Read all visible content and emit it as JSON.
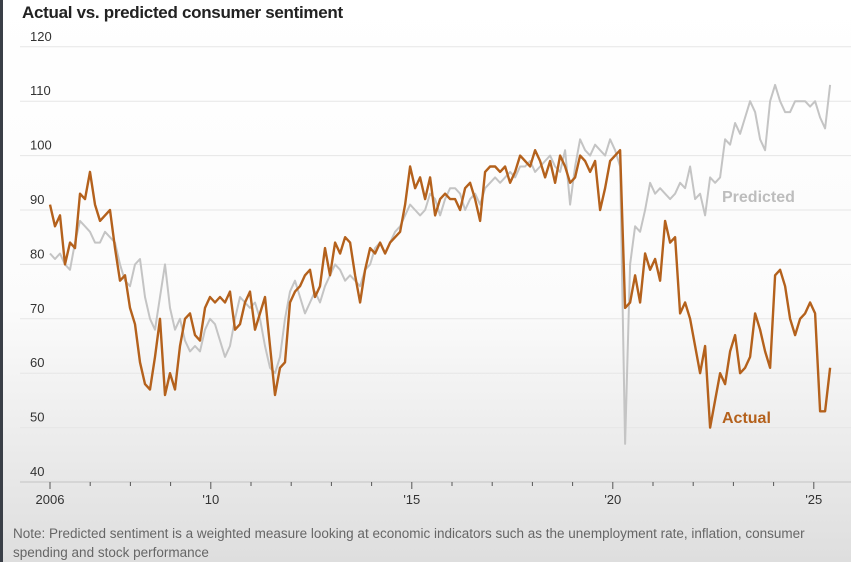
{
  "chart_data": {
    "type": "line",
    "title": "Actual vs. predicted consumer sentiment",
    "xlabel": "",
    "ylabel": "",
    "ylim": [
      40,
      120
    ],
    "xlim": [
      2006,
      2025.6
    ],
    "grid": true,
    "y_ticks": [
      "120",
      "110",
      "100",
      "90",
      "80",
      "70",
      "60",
      "50",
      "40"
    ],
    "y_tick_values": [
      120,
      110,
      100,
      90,
      80,
      70,
      60,
      50,
      40
    ],
    "x_ticks": [
      {
        "value": 2006,
        "label": "2006"
      },
      {
        "value": 2010,
        "label": "'10"
      },
      {
        "value": 2015,
        "label": "'15"
      },
      {
        "value": 2020,
        "label": "'20"
      },
      {
        "value": 2025,
        "label": "'25"
      }
    ],
    "x_start": 2006,
    "x_step": 0.1244,
    "series": [
      {
        "name": "Predicted",
        "color": "#c4c4c4",
        "values": [
          82,
          81,
          82,
          80,
          79,
          84,
          88,
          87,
          86,
          84,
          84,
          86,
          85,
          84,
          80,
          77,
          76,
          80,
          81,
          74,
          70,
          68,
          74,
          80,
          72,
          68,
          70,
          66,
          64,
          65,
          64,
          68,
          70,
          69,
          66,
          63,
          65,
          70,
          74,
          73,
          72,
          73,
          70,
          65,
          61,
          60,
          63,
          70,
          75,
          77,
          74,
          71,
          73,
          75,
          73,
          76,
          78,
          80,
          79,
          77,
          78,
          77,
          76,
          79,
          80,
          83,
          84,
          82,
          84,
          86,
          87,
          89,
          91,
          90,
          89,
          90,
          93,
          92,
          89,
          92,
          94,
          94,
          93,
          90,
          92,
          93,
          91,
          94,
          95,
          96,
          95,
          96,
          97,
          96,
          98,
          98,
          99,
          97,
          98,
          99,
          100,
          98,
          97,
          101,
          91,
          98,
          103,
          101,
          100,
          102,
          101,
          100,
          103,
          101,
          98,
          47,
          80,
          87,
          86,
          90,
          95,
          93,
          94,
          93,
          92,
          93,
          95,
          94,
          98,
          92,
          93,
          89,
          96,
          95,
          96,
          103,
          102,
          106,
          104,
          107,
          110,
          108,
          103,
          101,
          110,
          113,
          110,
          108,
          108,
          110,
          110,
          110,
          109,
          110,
          107,
          105,
          113
        ]
      },
      {
        "name": "Actual",
        "color": "#b4611c",
        "values": [
          91,
          87,
          89,
          80,
          84,
          83,
          93,
          92,
          97,
          91,
          88,
          89,
          90,
          83,
          77,
          78,
          72,
          69,
          62,
          58,
          57,
          63,
          70,
          56,
          60,
          57,
          65,
          70,
          71,
          67,
          66,
          72,
          74,
          73,
          74,
          73,
          75,
          68,
          69,
          73,
          75,
          68,
          71,
          74,
          65,
          56,
          61,
          62,
          73,
          75,
          76,
          78,
          79,
          74,
          76,
          83,
          78,
          84,
          82,
          85,
          84,
          78,
          73,
          79,
          83,
          82,
          84,
          82,
          84,
          85,
          86,
          91,
          98,
          94,
          96,
          92,
          96,
          89,
          92,
          93,
          92,
          92,
          90,
          94,
          95,
          92,
          88,
          97,
          98,
          98,
          97,
          98,
          95,
          97,
          100,
          99,
          98,
          101,
          99,
          96,
          99,
          95,
          100,
          98,
          95,
          96,
          100,
          99,
          97,
          99,
          90,
          94,
          99,
          100,
          101,
          72,
          73,
          78,
          73,
          82,
          79,
          81,
          77,
          88,
          84,
          85,
          71,
          73,
          70,
          65,
          60,
          65,
          50,
          55,
          60,
          58,
          64,
          67,
          60,
          61,
          63,
          71,
          68,
          64,
          61,
          78,
          79,
          76,
          70,
          67,
          70,
          71,
          73,
          71,
          53,
          53,
          61
        ]
      }
    ],
    "annotations": [
      "Predicted",
      "Actual"
    ],
    "note": "Note: Predicted sentiment is a weighted measure looking at economic indicators such as the unemployment rate, inflation, consumer spending and stock performance"
  }
}
